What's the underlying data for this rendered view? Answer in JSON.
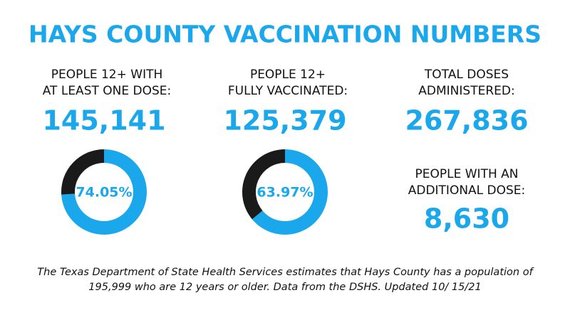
{
  "title": "HAYS COUNTY VACCINATION NUMBERS",
  "stats": [
    {
      "label_lines": [
        "PEOPLE  12+ WITH",
        "AT LEAST ONE DOSE:"
      ],
      "value": "145,141"
    },
    {
      "label_lines": [
        "PEOPLE 12+",
        "FULLY VACCINATED:"
      ],
      "value": "125,379"
    },
    {
      "label_lines": [
        "TOTAL DOSES",
        "ADMINISTERED:"
      ],
      "value": "267,836"
    },
    {
      "label_lines": [
        "PEOPLE WITH AN",
        "ADDITIONAL DOSE:"
      ],
      "value": "8,630"
    }
  ],
  "chart_data": [
    {
      "type": "pie",
      "values": [
        74.05,
        25.95
      ],
      "value_labels": [
        "74.05%",
        null
      ],
      "colors": [
        "#1aa7ec",
        "#1a1a1a"
      ]
    },
    {
      "type": "pie",
      "values": [
        63.97,
        36.03
      ],
      "value_labels": [
        "63.97%",
        null
      ],
      "colors": [
        "#1aa7ec",
        "#1a1a1a"
      ]
    }
  ],
  "footnote_lines": [
    "The Texas Department of State Health Services estimates that Hays County has a population of",
    "195,999 who are 12 years or older. Data from the DSHS. Updated 10/ 15/21"
  ]
}
